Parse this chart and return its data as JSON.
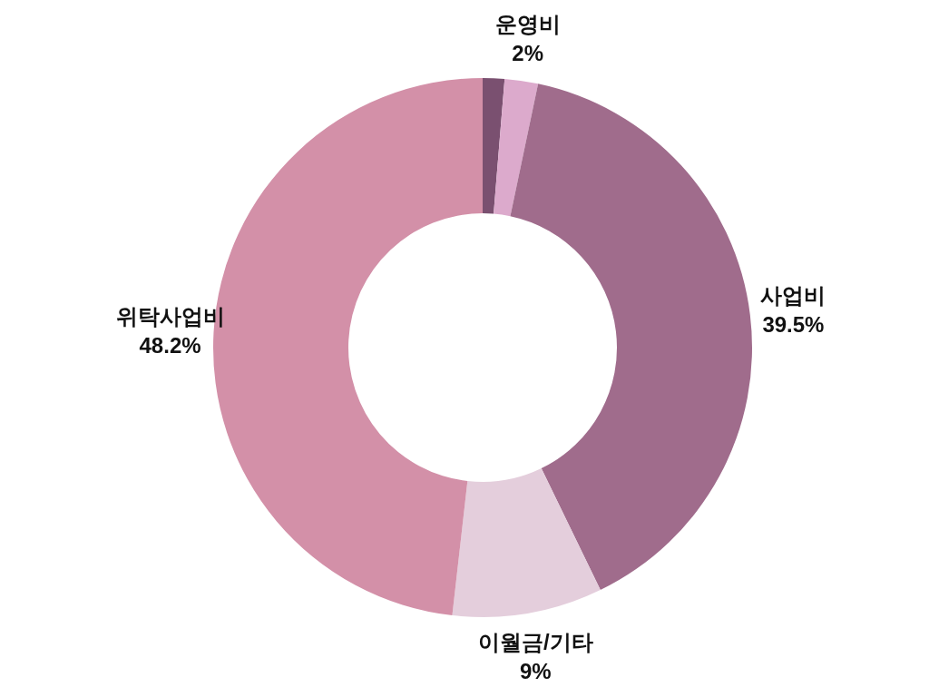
{
  "chart_data": {
    "type": "donut",
    "categories": [
      null,
      "운영비",
      "사업비",
      "이월금/기타",
      "위탁사업비"
    ],
    "values": [
      1.3,
      2,
      39.5,
      9,
      48.2
    ],
    "value_labels": [
      null,
      "2%",
      "39.5%",
      "9%",
      "48.2%"
    ],
    "colors": [
      "#7a5070",
      "#dcaacc",
      "#a06c8c",
      "#e4cedc",
      "#d390a8"
    ]
  }
}
